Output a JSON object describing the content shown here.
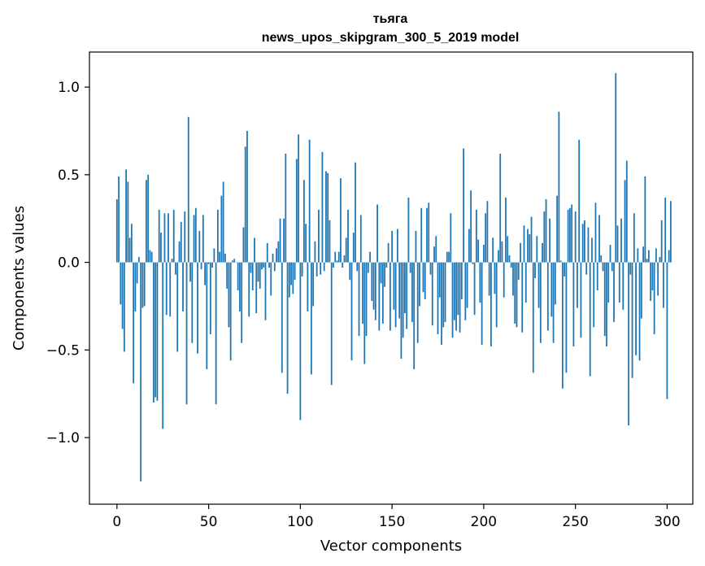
{
  "chart_data": {
    "type": "bar",
    "title": "тьяга",
    "subtitle": "news_upos_skipgram_300_5_2019 model",
    "xlabel": "Vector components",
    "ylabel": "Components values",
    "xlim": [
      -15,
      314
    ],
    "ylim": [
      -1.38,
      1.2
    ],
    "xticks": [
      0,
      50,
      100,
      150,
      200,
      250,
      300
    ],
    "yticks": [
      -1.0,
      -0.5,
      0.0,
      0.5,
      1.0
    ],
    "ytick_labels": [
      "−1.0",
      "−0.5",
      "0.0",
      "0.5",
      "1.0"
    ],
    "grid": false,
    "legend": "none",
    "color": "#1f77b4",
    "values": [
      0.36,
      0.49,
      -0.24,
      -0.38,
      -0.51,
      0.53,
      0.46,
      0.14,
      0.22,
      -0.69,
      -0.28,
      -0.12,
      0.03,
      -1.25,
      -0.26,
      -0.25,
      0.47,
      0.5,
      0.07,
      0.06,
      -0.8,
      -0.77,
      -0.79,
      0.3,
      0.17,
      -0.95,
      0.28,
      -0.3,
      0.28,
      -0.31,
      0.02,
      0.3,
      -0.07,
      -0.51,
      0.12,
      0.23,
      -0.28,
      0.29,
      -0.81,
      0.83,
      -0.11,
      -0.46,
      0.27,
      0.31,
      -0.52,
      0.18,
      -0.04,
      0.27,
      -0.13,
      -0.61,
      -0.01,
      -0.41,
      -0.03,
      0.08,
      -0.81,
      0.3,
      0.06,
      0.38,
      0.46,
      0.05,
      -0.15,
      -0.37,
      -0.56,
      0.01,
      0.02,
      0.0,
      -0.16,
      -0.28,
      -0.46,
      0.2,
      0.66,
      0.75,
      -0.31,
      -0.06,
      -0.16,
      0.14,
      -0.29,
      -0.11,
      -0.15,
      -0.04,
      -0.03,
      -0.33,
      0.11,
      -0.03,
      -0.19,
      0.05,
      -0.05,
      0.08,
      0.12,
      0.25,
      -0.63,
      0.25,
      0.62,
      -0.75,
      -0.2,
      -0.13,
      -0.18,
      -0.1,
      0.59,
      0.73,
      -0.9,
      -0.08,
      0.47,
      0.22,
      -0.28,
      0.7,
      -0.64,
      -0.25,
      0.12,
      -0.08,
      0.3,
      -0.07,
      0.63,
      -0.05,
      0.52,
      0.51,
      0.24,
      -0.7,
      -0.03,
      0.06,
      0.01,
      0.06,
      0.48,
      -0.03,
      0.04,
      0.14,
      0.3,
      -0.1,
      -0.56,
      0.17,
      0.57,
      -0.05,
      -0.42,
      0.27,
      -0.35,
      -0.58,
      -0.42,
      -0.06,
      0.06,
      -0.22,
      -0.27,
      -0.33,
      0.33,
      -0.39,
      -0.12,
      -0.35,
      -0.14,
      -0.03,
      0.11,
      -0.39,
      0.18,
      -0.27,
      -0.37,
      0.19,
      -0.32,
      -0.55,
      -0.43,
      -0.29,
      -0.38,
      0.37,
      -0.06,
      -0.34,
      -0.61,
      0.18,
      -0.46,
      -0.25,
      0.31,
      -0.17,
      -0.21,
      0.31,
      0.34,
      -0.07,
      -0.36,
      0.09,
      0.15,
      -0.41,
      -0.2,
      -0.47,
      -0.37,
      -0.34,
      0.06,
      0.06,
      0.28,
      -0.43,
      -0.33,
      -0.39,
      -0.3,
      -0.4,
      -0.21,
      0.65,
      -0.33,
      -0.26,
      0.19,
      0.41,
      -0.01,
      -0.3,
      0.3,
      0.13,
      -0.23,
      -0.47,
      0.1,
      0.28,
      0.35,
      -0.19,
      -0.48,
      0.14,
      -0.18,
      -0.37,
      0.07,
      0.62,
      0.12,
      -0.2,
      0.37,
      0.15,
      0.04,
      -0.03,
      -0.19,
      -0.35,
      -0.37,
      -0.1,
      0.11,
      -0.4,
      0.21,
      -0.23,
      0.19,
      0.16,
      0.26,
      -0.63,
      -0.09,
      0.15,
      -0.26,
      -0.46,
      0.11,
      0.29,
      0.36,
      -0.39,
      0.25,
      -0.31,
      -0.46,
      -0.24,
      0.38,
      0.86,
      0.01,
      -0.72,
      -0.08,
      -0.63,
      0.3,
      0.31,
      0.33,
      -0.48,
      0.29,
      -0.26,
      0.7,
      -0.43,
      0.22,
      0.24,
      -0.07,
      0.2,
      -0.65,
      0.14,
      -0.37,
      0.34,
      -0.16,
      0.27,
      0.04,
      -0.05,
      -0.42,
      -0.48,
      -0.23,
      0.1,
      -0.05,
      -0.34,
      1.08,
      0.21,
      -0.23,
      0.25,
      -0.27,
      0.47,
      0.58,
      -0.93,
      -0.07,
      -0.66,
      0.28,
      -0.53,
      0.08,
      -0.56,
      -0.32,
      0.09,
      0.49,
      0.02,
      0.07,
      -0.22,
      -0.16,
      -0.41,
      0.08,
      -0.19,
      0.03,
      0.24,
      -0.26,
      0.37,
      -0.78,
      0.07,
      0.35
    ]
  }
}
